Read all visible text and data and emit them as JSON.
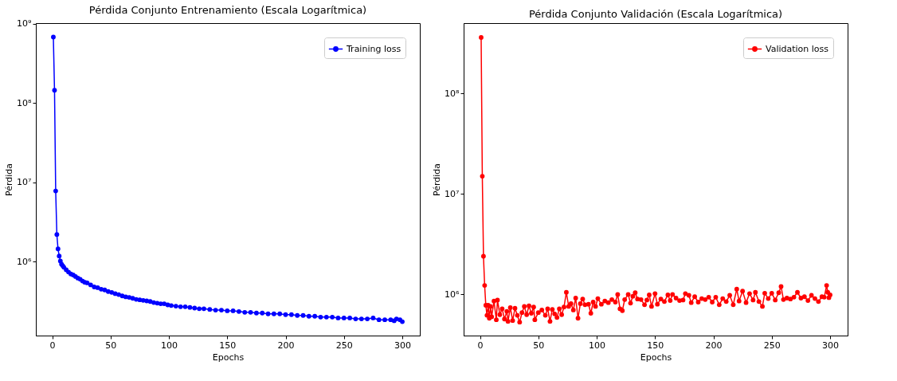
{
  "chart_data": [
    {
      "type": "line",
      "title": "Pérdida Conjunto Entrenamiento (Escala Logarítmica)",
      "xlabel": "Epochs",
      "ylabel": "Pérdida",
      "log": "y",
      "grid": false,
      "legend": "top right",
      "marker": "circle",
      "line_style": "solid",
      "xlim": [
        -14,
        315
      ],
      "xticks": [
        0,
        50,
        100,
        150,
        200,
        250,
        300
      ],
      "ylim": [
        117000,
        1020000000
      ],
      "yticks": [
        {
          "value": 1000000,
          "label": "10⁶"
        },
        {
          "value": 10000000,
          "label": "10⁷"
        },
        {
          "value": 100000000,
          "label": "10⁸"
        },
        {
          "value": 1000000000,
          "label": "10⁹"
        }
      ],
      "series": [
        {
          "name": "Training loss",
          "color": "#0000ff",
          "x": [
            1,
            2,
            3,
            4,
            5,
            6,
            7,
            8,
            9,
            10,
            12,
            14,
            16,
            18,
            20,
            22,
            24,
            26,
            28,
            30,
            33,
            36,
            39,
            42,
            45,
            48,
            51,
            54,
            57,
            60,
            63,
            66,
            69,
            72,
            75,
            78,
            81,
            84,
            87,
            90,
            93,
            96,
            99,
            102,
            106,
            110,
            114,
            118,
            122,
            126,
            130,
            135,
            140,
            145,
            150,
            155,
            160,
            165,
            170,
            175,
            180,
            185,
            190,
            195,
            200,
            205,
            210,
            215,
            220,
            225,
            230,
            235,
            240,
            245,
            250,
            255,
            260,
            265,
            270,
            275,
            280,
            285,
            290,
            293,
            295,
            298,
            300
          ],
          "values": [
            680000000,
            145000000,
            7800000,
            2200000,
            1450000,
            1180000,
            1020000,
            930000,
            890000,
            850000,
            790000,
            740000,
            700000,
            680000,
            650000,
            620000,
            600000,
            570000,
            550000,
            540000,
            510000,
            480000,
            470000,
            450000,
            440000,
            420000,
            410000,
            395000,
            385000,
            370000,
            360000,
            355000,
            345000,
            335000,
            330000,
            325000,
            320000,
            315000,
            305000,
            300000,
            295000,
            295000,
            285000,
            280000,
            275000,
            270000,
            270000,
            265000,
            260000,
            255000,
            255000,
            250000,
            245000,
            245000,
            240000,
            240000,
            235000,
            230000,
            230000,
            225000,
            225000,
            220000,
            220000,
            220000,
            215000,
            215000,
            210000,
            210000,
            205000,
            205000,
            200000,
            200000,
            200000,
            195000,
            195000,
            195000,
            190000,
            190000,
            190000,
            195000,
            185000,
            185000,
            185000,
            180000,
            190000,
            185000,
            175000
          ]
        }
      ]
    },
    {
      "type": "line",
      "title": "Pérdida Conjunto Validación (Escala Logarítmica)",
      "xlabel": "Epochs",
      "ylabel": "Pérdida",
      "log": "y",
      "grid": false,
      "legend": "top right",
      "marker": "circle",
      "line_style": "solid",
      "xlim": [
        -14,
        315
      ],
      "xticks": [
        0,
        50,
        100,
        150,
        200,
        250,
        300
      ],
      "ylim": [
        390000,
        500000000
      ],
      "yticks": [
        {
          "value": 1000000,
          "label": "10⁶"
        },
        {
          "value": 10000000,
          "label": "10⁷"
        },
        {
          "value": 100000000,
          "label": "10⁸"
        }
      ],
      "series": [
        {
          "name": "Validation loss",
          "color": "#ff0000",
          "x": [
            1,
            2,
            3,
            4,
            5,
            6,
            7,
            8,
            9,
            10,
            12,
            14,
            15,
            17,
            19,
            21,
            23,
            24,
            26,
            28,
            30,
            32,
            34,
            36,
            38,
            40,
            42,
            44,
            46,
            47,
            50,
            53,
            56,
            58,
            60,
            62,
            64,
            66,
            68,
            70,
            72,
            74,
            76,
            78,
            80,
            82,
            84,
            86,
            88,
            90,
            93,
            95,
            97,
            99,
            101,
            104,
            107,
            110,
            113,
            116,
            118,
            120,
            122,
            124,
            127,
            129,
            131,
            133,
            135,
            138,
            141,
            143,
            145,
            147,
            150,
            152,
            155,
            158,
            161,
            163,
            165,
            168,
            171,
            174,
            176,
            179,
            181,
            184,
            187,
            190,
            193,
            196,
            199,
            202,
            205,
            208,
            211,
            214,
            217,
            220,
            222,
            225,
            228,
            231,
            234,
            236,
            239,
            242,
            244,
            247,
            250,
            253,
            256,
            258,
            260,
            263,
            266,
            269,
            272,
            275,
            278,
            281,
            284,
            287,
            290,
            293,
            295,
            297,
            298,
            299,
            300
          ],
          "values": [
            360000000,
            15000000,
            2400000,
            1230000,
            780000,
            620000,
            780000,
            580000,
            760000,
            600000,
            860000,
            560000,
            880000,
            630000,
            720000,
            570000,
            680000,
            540000,
            740000,
            550000,
            730000,
            620000,
            530000,
            660000,
            760000,
            630000,
            770000,
            650000,
            750000,
            560000,
            660000,
            700000,
            620000,
            720000,
            540000,
            710000,
            640000,
            590000,
            720000,
            630000,
            750000,
            1050000,
            760000,
            810000,
            700000,
            920000,
            580000,
            810000,
            900000,
            790000,
            800000,
            650000,
            840000,
            760000,
            910000,
            800000,
            860000,
            830000,
            890000,
            840000,
            1000000,
            720000,
            690000,
            890000,
            1000000,
            820000,
            960000,
            1040000,
            900000,
            890000,
            790000,
            880000,
            990000,
            760000,
            1020000,
            800000,
            900000,
            850000,
            990000,
            870000,
            1000000,
            920000,
            870000,
            880000,
            1020000,
            980000,
            830000,
            950000,
            840000,
            910000,
            890000,
            940000,
            840000,
            940000,
            790000,
            910000,
            850000,
            980000,
            790000,
            1130000,
            860000,
            1080000,
            830000,
            1020000,
            880000,
            1050000,
            850000,
            760000,
            1030000,
            910000,
            1030000,
            880000,
            1040000,
            1200000,
            890000,
            920000,
            900000,
            940000,
            1050000,
            920000,
            950000,
            870000,
            980000,
            910000,
            850000,
            950000,
            940000,
            1230000,
            1050000,
            930000,
            990000
          ]
        }
      ]
    }
  ]
}
